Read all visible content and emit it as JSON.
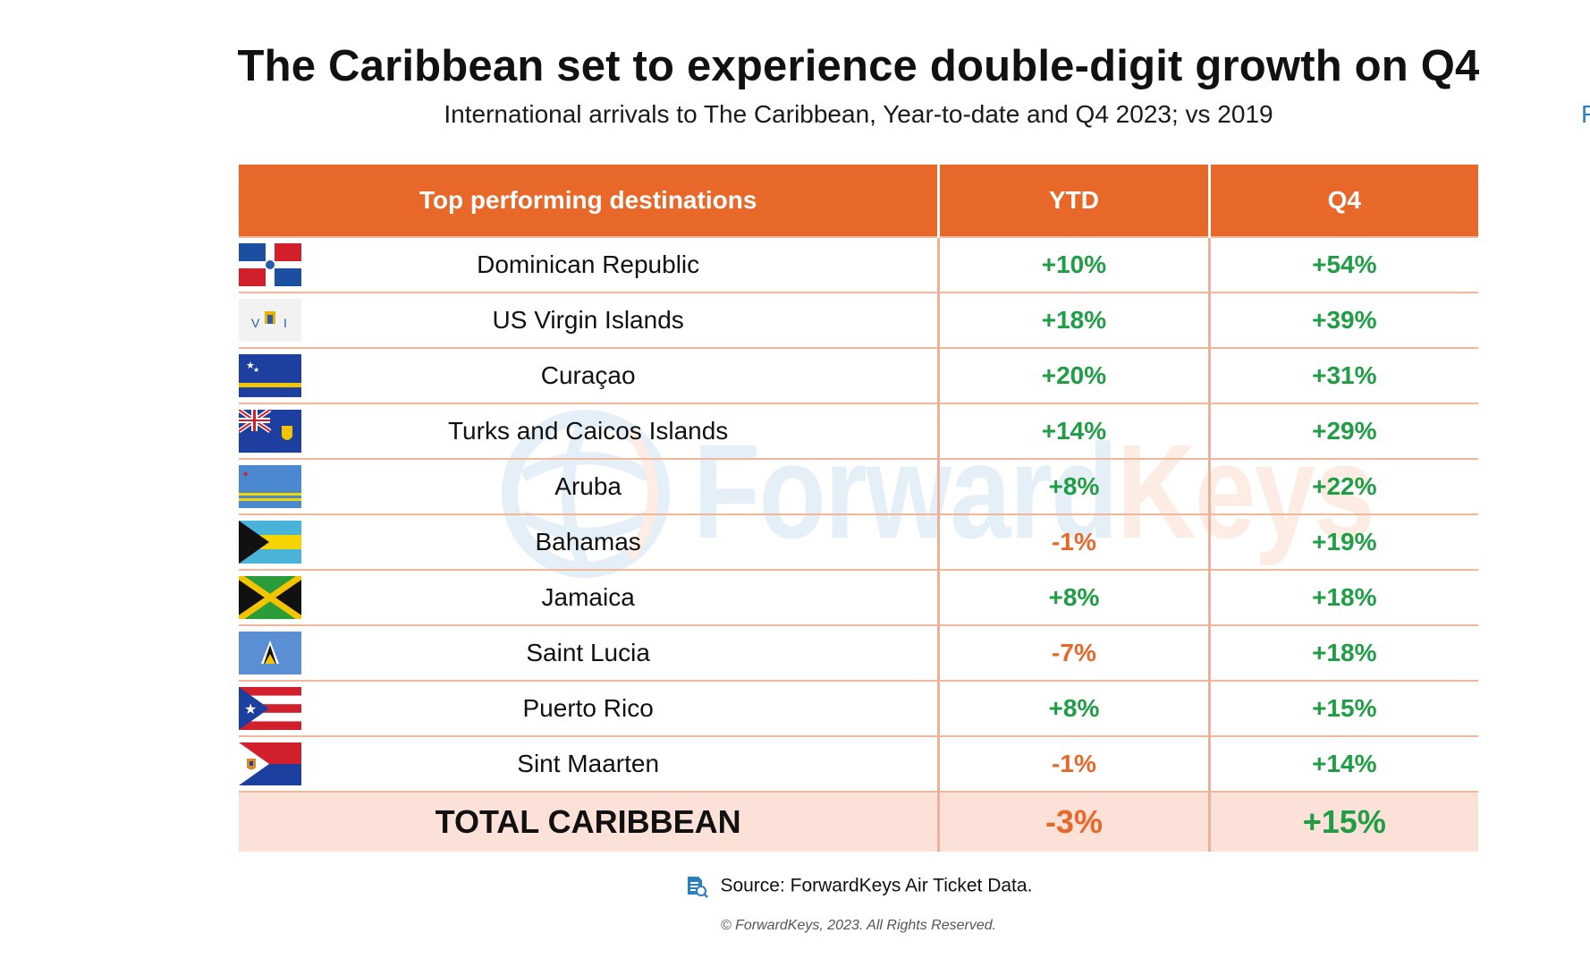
{
  "title": "The Caribbean set to experience double-digit growth on Q4",
  "subtitle": "International arrivals to The Caribbean, Year-to-date and Q4 2023; vs 2019",
  "edge_mark": "F",
  "watermark": {
    "part1": "Forward",
    "part2": "Keys"
  },
  "colors": {
    "header": "#e8682a",
    "positive": "#1f9e46",
    "negative": "#e8682a",
    "total_bg": "#fbe1d8"
  },
  "chart_data": {
    "type": "table",
    "title": "The Caribbean set to experience double-digit growth on Q4",
    "subtitle": "International arrivals to The Caribbean, Year-to-date and Q4 2023; vs 2019",
    "columns": [
      "Top performing destinations",
      "YTD",
      "Q4"
    ],
    "rows": [
      {
        "destination": "Dominican Republic",
        "flag": "dominican-republic-flag",
        "ytd": "+10%",
        "q4": "+54%",
        "ytd_value": 10,
        "q4_value": 54
      },
      {
        "destination": "US Virgin Islands",
        "flag": "us-virgin-islands-flag",
        "ytd": "+18%",
        "q4": "+39%",
        "ytd_value": 18,
        "q4_value": 39
      },
      {
        "destination": "Curaçao",
        "flag": "curacao-flag",
        "ytd": "+20%",
        "q4": "+31%",
        "ytd_value": 20,
        "q4_value": 31
      },
      {
        "destination": "Turks and Caicos Islands",
        "flag": "turks-and-caicos-flag",
        "ytd": "+14%",
        "q4": "+29%",
        "ytd_value": 14,
        "q4_value": 29
      },
      {
        "destination": "Aruba",
        "flag": "aruba-flag",
        "ytd": "+8%",
        "q4": "+22%",
        "ytd_value": 8,
        "q4_value": 22
      },
      {
        "destination": "Bahamas",
        "flag": "bahamas-flag",
        "ytd": "-1%",
        "q4": "+19%",
        "ytd_value": -1,
        "q4_value": 19
      },
      {
        "destination": "Jamaica",
        "flag": "jamaica-flag",
        "ytd": "+8%",
        "q4": "+18%",
        "ytd_value": 8,
        "q4_value": 18
      },
      {
        "destination": "Saint Lucia",
        "flag": "saint-lucia-flag",
        "ytd": "-7%",
        "q4": "+18%",
        "ytd_value": -7,
        "q4_value": 18
      },
      {
        "destination": "Puerto Rico",
        "flag": "puerto-rico-flag",
        "ytd": "+8%",
        "q4": "+15%",
        "ytd_value": 8,
        "q4_value": 15
      },
      {
        "destination": "Sint Maarten",
        "flag": "sint-maarten-flag",
        "ytd": "-1%",
        "q4": "+14%",
        "ytd_value": -1,
        "q4_value": 14
      }
    ],
    "total": {
      "label": "TOTAL CARIBBEAN",
      "ytd": "-3%",
      "q4": "+15%",
      "ytd_value": -3,
      "q4_value": 15
    }
  },
  "footer": {
    "source": "Source: ForwardKeys Air Ticket Data.",
    "copyright": "© ForwardKeys, 2023. All Rights Reserved."
  }
}
